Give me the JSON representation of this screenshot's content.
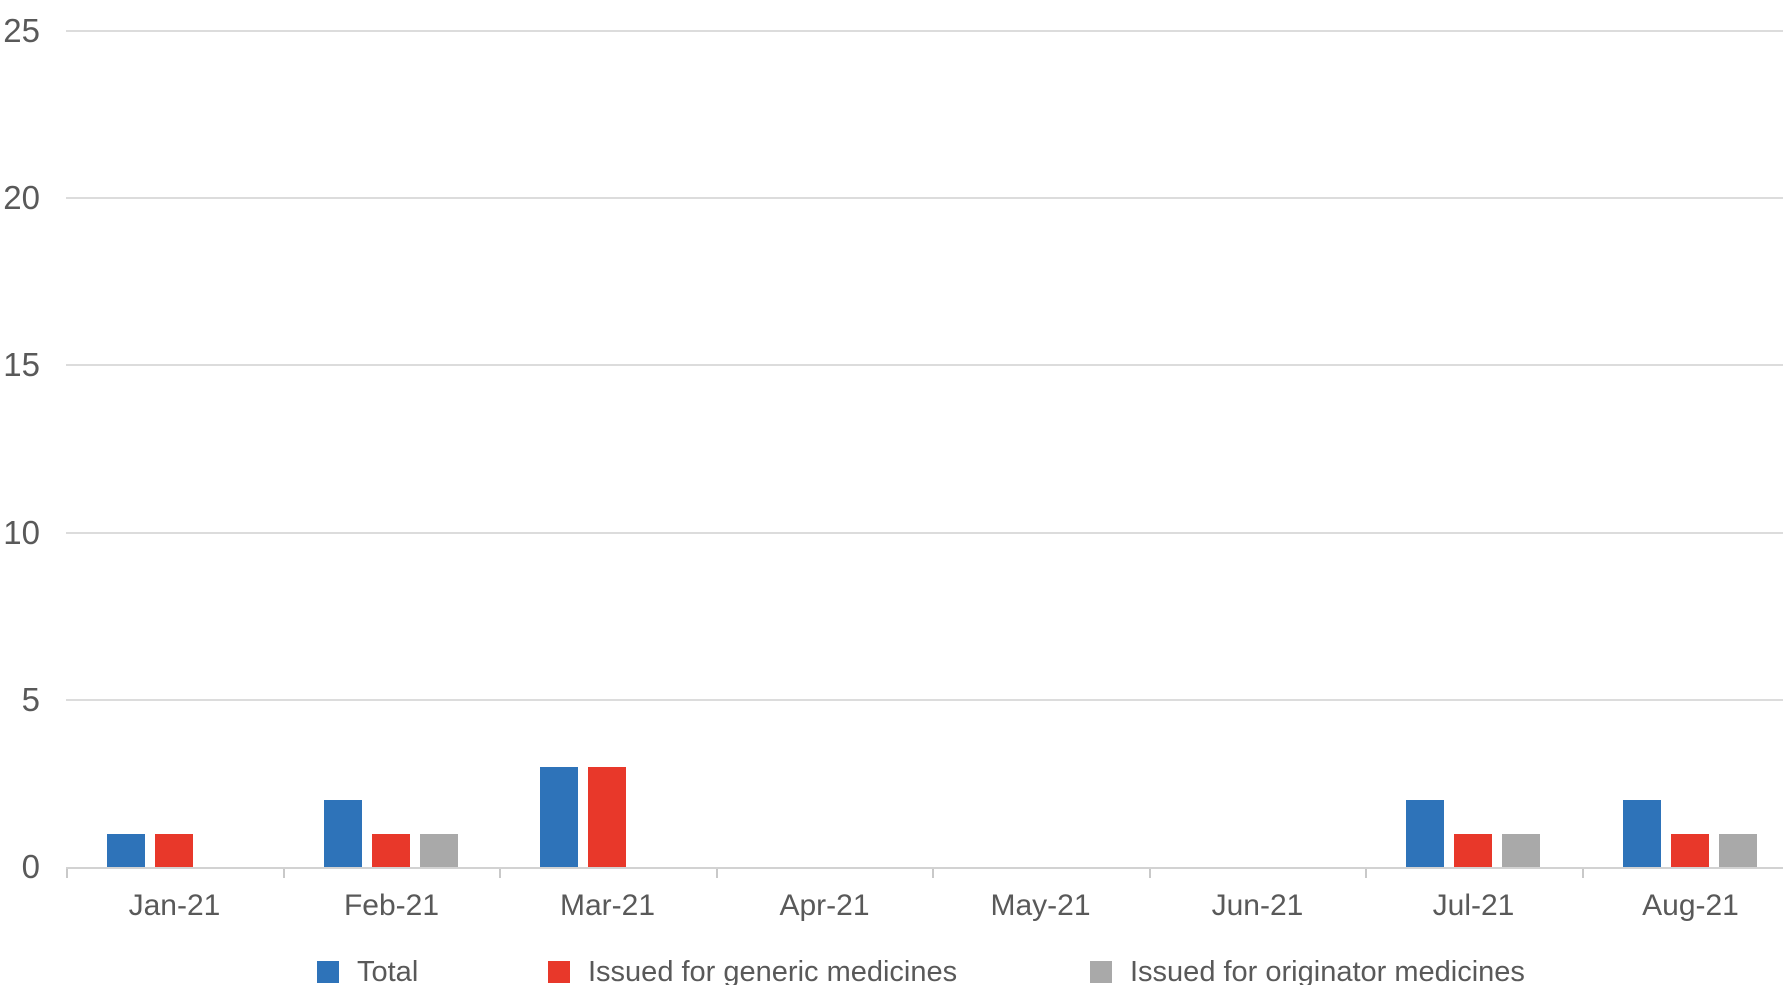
{
  "chart_data": {
    "type": "bar",
    "title": "",
    "xlabel": "",
    "ylabel": "",
    "categories": [
      "Jan-21",
      "Feb-21",
      "Mar-21",
      "Apr-21",
      "May-21",
      "Jun-21",
      "Jul-21",
      "Aug-21"
    ],
    "series": [
      {
        "name": "Total",
        "color": "#2E73B9",
        "values": [
          1,
          2,
          3,
          0,
          0,
          0,
          2,
          2
        ]
      },
      {
        "name": "Issued for generic medicines",
        "color": "#E8382A",
        "values": [
          1,
          1,
          3,
          0,
          0,
          0,
          1,
          1
        ]
      },
      {
        "name": "Issued for originator medicines",
        "color": "#A9A9A9",
        "values": [
          0,
          1,
          0,
          0,
          0,
          0,
          1,
          1
        ]
      }
    ],
    "ylim": [
      0,
      25
    ],
    "yticks": [
      0,
      5,
      10,
      15,
      20,
      25
    ],
    "grid": true,
    "gridline_color": "#DCDCDC",
    "axis_line_color": "#D2D2D2",
    "label_color": "#595959",
    "legend_position": "bottom"
  }
}
